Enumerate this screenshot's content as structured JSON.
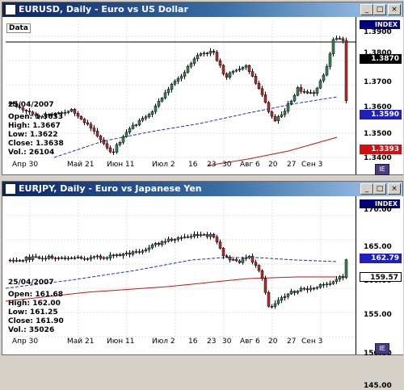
{
  "colors": {
    "up": "#2e8b57",
    "down": "#c0282a",
    "ma_blue": "#1c2fc4",
    "ma_red": "#cc1111"
  },
  "charts": [
    {
      "title": "EURUSD, Daily - Euro vs US Dollar",
      "data_label": "Data",
      "index_label": "INDEX",
      "info": {
        "date": "25/04/2007",
        "open": "Open: 1.3633",
        "high": "High: 1.3667",
        "low": "Low: 1.3622",
        "close": "Close: 1.3638",
        "vol": "Vol.: 26104"
      },
      "y_ticks": [
        "1.3900",
        "1.3800",
        "1.3700",
        "1.3600",
        "1.3500",
        "1.3400"
      ],
      "y_range": [
        1.33,
        1.393
      ],
      "price_boxes": [
        {
          "text": "1.3870",
          "bg": "#000000",
          "fg": "#ffffff"
        },
        {
          "text": "1.3590",
          "bg": "#2020c0",
          "fg": "#ffffff"
        },
        {
          "text": "1.3393",
          "bg": "#d01010",
          "fg": "#ffffff"
        }
      ],
      "x_labels": [
        "Апр 30",
        "Май 21",
        "Июн 11",
        "Июл 2",
        "16",
        "23",
        "30",
        "Авг 6",
        "20",
        "27",
        "Сен 3"
      ],
      "icon": "IE"
    },
    {
      "title": "EURJPY, Daily - Euro vs Japanese Yen",
      "data_label": "",
      "index_label": "INDEX",
      "info": {
        "date": "25/04/2007",
        "open": "Open: 161.68",
        "high": "High: 162.00",
        "low": "Low: 161.25",
        "close": "Close: 161.90",
        "vol": "Vol.: 35026"
      },
      "y_ticks": [
        "170.00",
        "165.00",
        "160.00",
        "155.00",
        "150.00",
        "145.00"
      ],
      "y_range": [
        143.0,
        172.0
      ],
      "price_boxes": [
        {
          "text": "162.79",
          "bg": "#2020c0",
          "fg": "#ffffff"
        },
        {
          "text": "159.57",
          "bg": "#ffffff",
          "fg": "#000000"
        }
      ],
      "x_labels": [
        "Апр 30",
        "Май 21",
        "Июн 11",
        "Июл 2",
        "16",
        "23",
        "30",
        "Авг 6",
        "20",
        "27",
        "Сен 3"
      ],
      "icon": "IE"
    }
  ]
}
